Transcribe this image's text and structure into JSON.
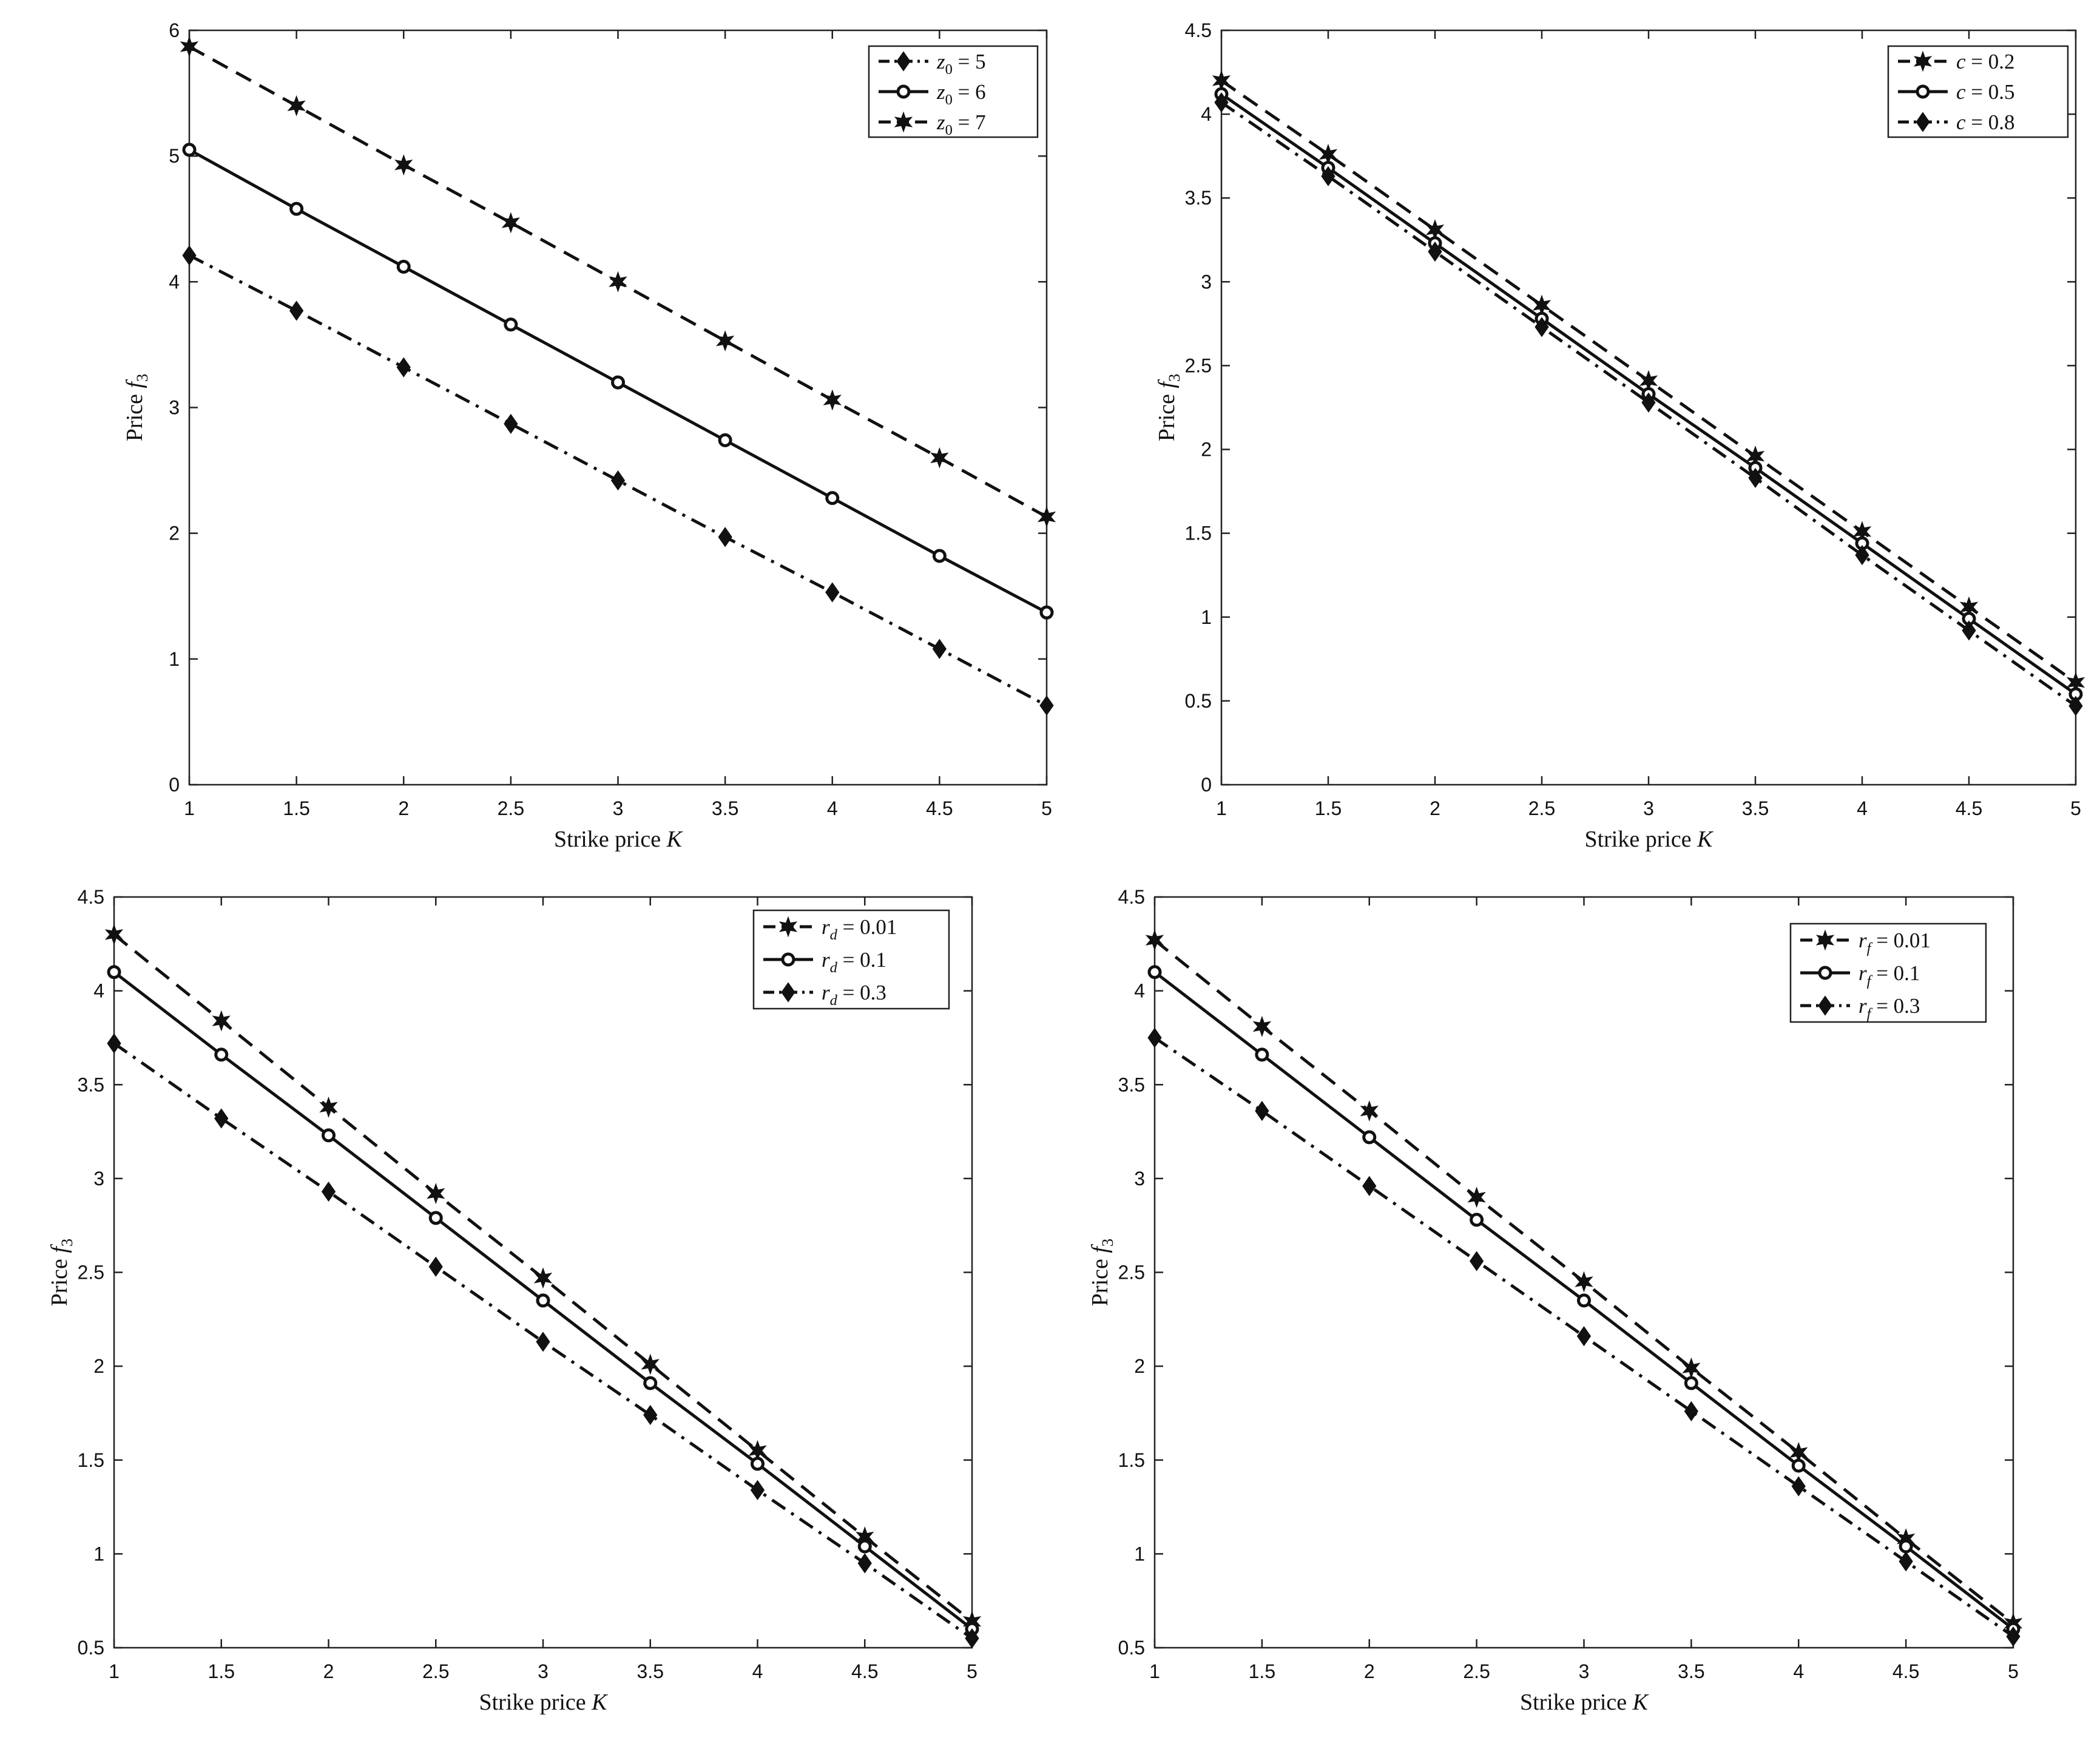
{
  "figure": {
    "panels": [
      {
        "id": "z0",
        "xlabel": "Strike price K",
        "ylabel": "Price f3",
        "legend_labels": [
          "z0 = 5",
          "z0 = 6",
          "z0 = 7"
        ],
        "yticks": [
          "0",
          "1",
          "2",
          "3",
          "4",
          "5",
          "6"
        ]
      },
      {
        "id": "c",
        "xlabel": "Strike price K",
        "ylabel": "Price f3",
        "legend_labels": [
          "c = 0.2",
          "c = 0.5",
          "c = 0.8"
        ],
        "yticks": [
          "0",
          "0.5",
          "1",
          "1.5",
          "2",
          "2.5",
          "3",
          "3.5",
          "4",
          "4.5"
        ]
      },
      {
        "id": "rd",
        "xlabel": "Strike price K",
        "ylabel": "Price f3",
        "legend_labels": [
          "rd = 0.01",
          "rd = 0.1",
          "rd = 0.3"
        ],
        "yticks": [
          "0.5",
          "1",
          "1.5",
          "2",
          "2.5",
          "3",
          "3.5",
          "4",
          "4.5"
        ]
      },
      {
        "id": "rf",
        "xlabel": "Strike price K",
        "ylabel": "Price f3",
        "legend_labels": [
          "rf = 0.01",
          "rf = 0.1",
          "rf = 0.3"
        ],
        "yticks": [
          "0.5",
          "1",
          "1.5",
          "2",
          "2.5",
          "3",
          "3.5",
          "4",
          "4.5"
        ]
      }
    ],
    "xticks": [
      "1",
      "1.5",
      "2",
      "2.5",
      "3",
      "3.5",
      "4",
      "4.5",
      "5"
    ]
  },
  "chart_data": [
    {
      "type": "line",
      "xlabel": "Strike price K",
      "ylabel": "Price f3",
      "xlim": [
        1,
        5
      ],
      "ylim": [
        0,
        6
      ],
      "grid": false,
      "legend_position": "top-right",
      "x": [
        1,
        1.5,
        2,
        2.5,
        3,
        3.5,
        4,
        4.5,
        5
      ],
      "series": [
        {
          "name": "z0 = 5",
          "line_style": "dash-dot",
          "marker": "diamond",
          "values": [
            4.21,
            3.77,
            3.32,
            2.87,
            2.42,
            1.97,
            1.53,
            1.08,
            0.63
          ]
        },
        {
          "name": "z0 = 6",
          "line_style": "solid",
          "marker": "circle",
          "values": [
            5.05,
            4.58,
            4.12,
            3.66,
            3.2,
            2.74,
            2.28,
            1.82,
            1.37
          ]
        },
        {
          "name": "z0 = 7",
          "line_style": "dashed",
          "marker": "star",
          "values": [
            5.87,
            5.4,
            4.93,
            4.47,
            4.0,
            3.53,
            3.06,
            2.6,
            2.13
          ]
        }
      ]
    },
    {
      "type": "line",
      "xlabel": "Strike price K",
      "ylabel": "Price f3",
      "xlim": [
        1,
        5
      ],
      "ylim": [
        0,
        4.5
      ],
      "grid": false,
      "legend_position": "top-right",
      "x": [
        1,
        1.5,
        2,
        2.5,
        3,
        3.5,
        4,
        4.5,
        5
      ],
      "series": [
        {
          "name": "c = 0.2",
          "line_style": "dashed",
          "marker": "star",
          "values": [
            4.2,
            3.76,
            3.31,
            2.86,
            2.41,
            1.96,
            1.51,
            1.06,
            0.61
          ]
        },
        {
          "name": "c = 0.5",
          "line_style": "solid",
          "marker": "circle",
          "values": [
            4.12,
            3.68,
            3.23,
            2.78,
            2.33,
            1.89,
            1.44,
            0.99,
            0.54
          ]
        },
        {
          "name": "c = 0.8",
          "line_style": "dash-dot",
          "marker": "diamond",
          "values": [
            4.07,
            3.63,
            3.18,
            2.73,
            2.28,
            1.83,
            1.37,
            0.92,
            0.47
          ]
        }
      ]
    },
    {
      "type": "line",
      "xlabel": "Strike price K",
      "ylabel": "Price f3",
      "xlim": [
        1,
        5
      ],
      "ylim": [
        0.5,
        4.5
      ],
      "grid": false,
      "legend_position": "top-right",
      "x": [
        1,
        1.5,
        2,
        2.5,
        3,
        3.5,
        4,
        4.5,
        5
      ],
      "series": [
        {
          "name": "rd = 0.01",
          "line_style": "dashed",
          "marker": "star",
          "values": [
            4.3,
            3.84,
            3.38,
            2.92,
            2.47,
            2.01,
            1.55,
            1.09,
            0.64
          ]
        },
        {
          "name": "rd = 0.1",
          "line_style": "solid",
          "marker": "circle",
          "values": [
            4.1,
            3.66,
            3.23,
            2.79,
            2.35,
            1.91,
            1.48,
            1.04,
            0.6
          ]
        },
        {
          "name": "rd = 0.3",
          "line_style": "dash-dot",
          "marker": "diamond",
          "values": [
            3.72,
            3.32,
            2.93,
            2.53,
            2.13,
            1.74,
            1.34,
            0.95,
            0.55
          ]
        }
      ]
    },
    {
      "type": "line",
      "xlabel": "Strike price K",
      "ylabel": "Price f3",
      "xlim": [
        1,
        5
      ],
      "ylim": [
        0.5,
        4.5
      ],
      "grid": false,
      "legend_position": "top-right",
      "x": [
        1,
        1.5,
        2,
        2.5,
        3,
        3.5,
        4,
        4.5,
        5
      ],
      "series": [
        {
          "name": "rf = 0.01",
          "line_style": "dashed",
          "marker": "star",
          "values": [
            4.27,
            3.81,
            3.36,
            2.9,
            2.45,
            1.99,
            1.54,
            1.08,
            0.63
          ]
        },
        {
          "name": "rf = 0.1",
          "line_style": "solid",
          "marker": "circle",
          "values": [
            4.1,
            3.66,
            3.22,
            2.78,
            2.35,
            1.91,
            1.47,
            1.04,
            0.6
          ]
        },
        {
          "name": "rf = 0.3",
          "line_style": "dash-dot",
          "marker": "diamond",
          "values": [
            3.75,
            3.36,
            2.96,
            2.56,
            2.16,
            1.76,
            1.36,
            0.96,
            0.56
          ]
        }
      ]
    }
  ]
}
